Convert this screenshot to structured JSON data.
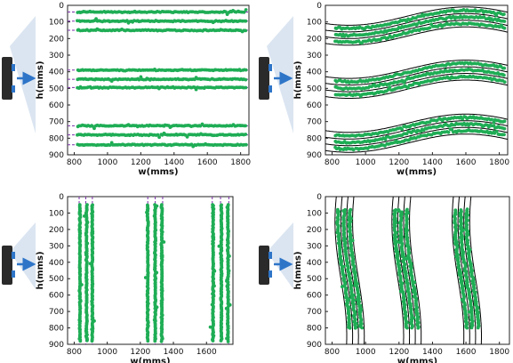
{
  "colors": {
    "point": "#1fad55",
    "guide": "#7a2ea8",
    "curve": "#000000",
    "arrow": "#2e75c8",
    "device": "#2a2a2a",
    "beam": "#dbe5f1"
  },
  "chart_data": [
    {
      "id": "top-left",
      "type": "scatter",
      "orientation": "horizontal",
      "style": "dashed-guides",
      "xlabel": "w(mms)",
      "ylabel": "h(mms)",
      "xlim": [
        760,
        1850
      ],
      "ylim": [
        900,
        0
      ],
      "xticks": [
        "800",
        "1000",
        "1200",
        "1400",
        "1600",
        "1800"
      ],
      "yticks": [
        "0",
        "100",
        "200",
        "300",
        "400",
        "500",
        "600",
        "700",
        "800",
        "900"
      ],
      "x_range": [
        820,
        1830
      ],
      "lanes": [
        {
          "name": "lane-1",
          "value": 40,
          "guide": 40
        },
        {
          "name": "lane-2",
          "value": 95,
          "guide": 95
        },
        {
          "name": "lane-3",
          "value": 150,
          "guide": 150
        },
        {
          "name": "lane-4",
          "value": 390,
          "guide": 390
        },
        {
          "name": "lane-5",
          "value": 445,
          "guide": 445
        },
        {
          "name": "lane-6",
          "value": 495,
          "guide": 495
        },
        {
          "name": "lane-7",
          "value": 725,
          "guide": 725
        },
        {
          "name": "lane-8",
          "value": 780,
          "guide": 780
        },
        {
          "name": "lane-9",
          "value": 840,
          "guide": 840
        }
      ]
    },
    {
      "id": "top-right",
      "type": "scatter",
      "orientation": "horizontal",
      "style": "sine-curves",
      "xlabel": "w(mms)",
      "ylabel": "h(mms)",
      "xlim": [
        760,
        1850
      ],
      "ylim": [
        900,
        0
      ],
      "xticks": [
        "800",
        "1000",
        "1200",
        "1400",
        "1600",
        "1800"
      ],
      "yticks": [
        "0",
        "100",
        "200",
        "300",
        "400",
        "500",
        "600",
        "700",
        "800",
        "900"
      ],
      "x_range": [
        820,
        1830
      ],
      "wave": {
        "center_x": 1600,
        "period": 1400,
        "amplitude": 55
      },
      "lanes": [
        {
          "name": "lane-1",
          "value": 85
        },
        {
          "name": "lane-2",
          "value": 125
        },
        {
          "name": "lane-3",
          "value": 165
        },
        {
          "name": "lane-4",
          "value": 405
        },
        {
          "name": "lane-5",
          "value": 445
        },
        {
          "name": "lane-6",
          "value": 485
        },
        {
          "name": "lane-7",
          "value": 730
        },
        {
          "name": "lane-8",
          "value": 770
        },
        {
          "name": "lane-9",
          "value": 810
        }
      ]
    },
    {
      "id": "bottom-left",
      "type": "scatter",
      "orientation": "vertical",
      "style": "dashed-guides",
      "xlabel": "w(mms)",
      "ylabel": "h(mms)",
      "xlim": [
        760,
        1760
      ],
      "ylim": [
        900,
        0
      ],
      "xticks": [
        "800",
        "1000",
        "1200",
        "1400",
        "1600"
      ],
      "yticks": [
        "0",
        "100",
        "200",
        "300",
        "400",
        "500",
        "600",
        "700",
        "800",
        "900"
      ],
      "y_range": [
        50,
        880
      ],
      "lanes": [
        {
          "name": "lane-1",
          "value": 835,
          "guide": 830
        },
        {
          "name": "lane-2",
          "value": 875,
          "guide": 870
        },
        {
          "name": "lane-3",
          "value": 910,
          "guide": 910
        },
        {
          "name": "lane-4",
          "value": 1245,
          "guide": 1245
        },
        {
          "name": "lane-5",
          "value": 1290,
          "guide": 1290
        },
        {
          "name": "lane-6",
          "value": 1330,
          "guide": 1335
        },
        {
          "name": "lane-7",
          "value": 1640,
          "guide": 1635
        },
        {
          "name": "lane-8",
          "value": 1690,
          "guide": 1685
        },
        {
          "name": "lane-9",
          "value": 1730,
          "guide": 1735
        }
      ]
    },
    {
      "id": "bottom-right",
      "type": "scatter",
      "orientation": "vertical",
      "style": "sine-curves",
      "xlabel": "w(mms)",
      "ylabel": "h(mms)",
      "xlim": [
        760,
        1860
      ],
      "ylim": [
        900,
        0
      ],
      "xticks": [
        "800",
        "1000",
        "1200",
        "1400",
        "1600",
        "1800"
      ],
      "yticks": [
        "0",
        "100",
        "200",
        "300",
        "400",
        "500",
        "600",
        "700",
        "800",
        "900"
      ],
      "y_range": [
        80,
        800
      ],
      "wave": {
        "center_y": 500,
        "period": 1400,
        "amplitude": 35
      },
      "lanes": [
        {
          "name": "lane-1",
          "value": 870
        },
        {
          "name": "lane-2",
          "value": 905
        },
        {
          "name": "lane-3",
          "value": 940
        },
        {
          "name": "lane-4",
          "value": 1210
        },
        {
          "name": "lane-5",
          "value": 1245
        },
        {
          "name": "lane-6",
          "value": 1280
        },
        {
          "name": "lane-7",
          "value": 1570
        },
        {
          "name": "lane-8",
          "value": 1605
        },
        {
          "name": "lane-9",
          "value": 1640
        }
      ]
    }
  ]
}
